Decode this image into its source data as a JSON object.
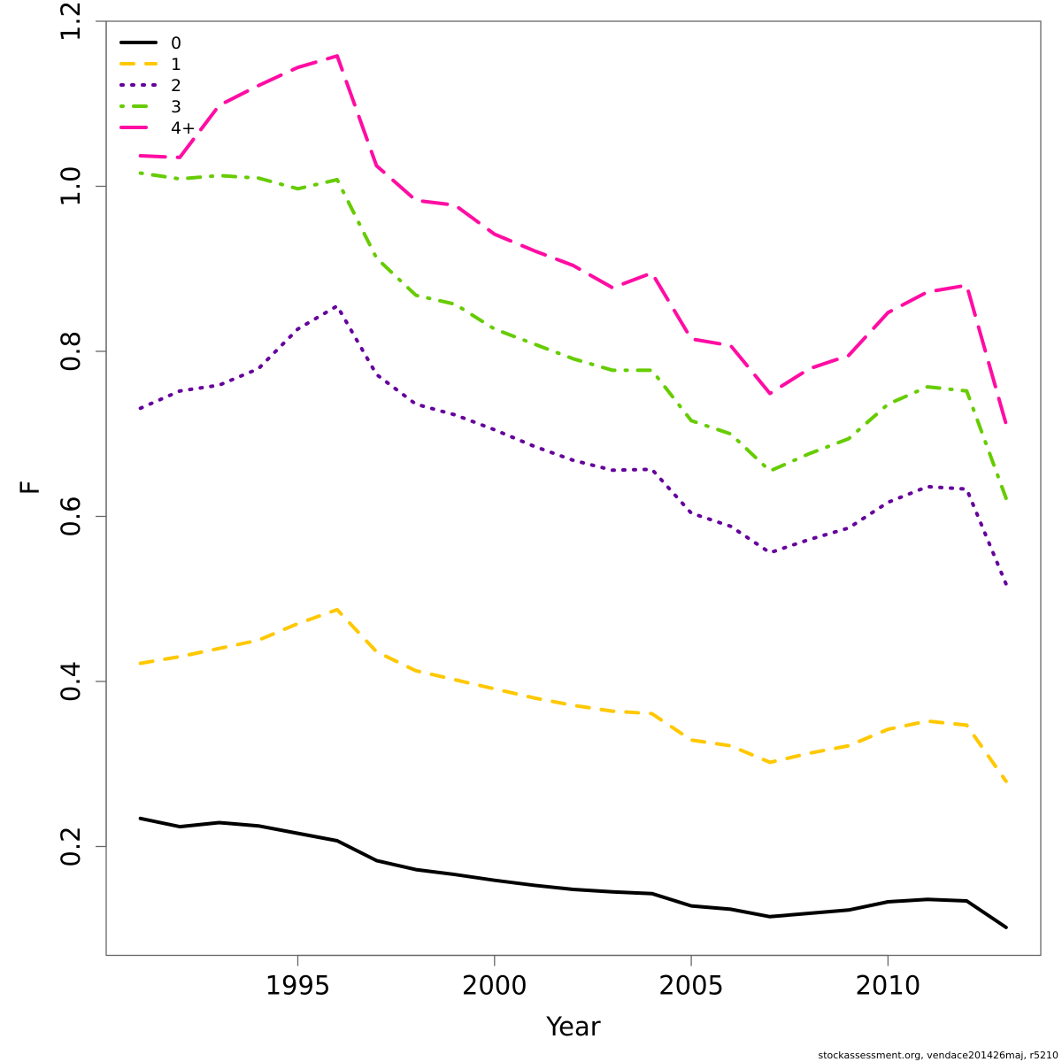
{
  "chart_data": {
    "type": "line",
    "title": "",
    "xlabel": "Year",
    "ylabel": "F",
    "xlim": [
      1990.05,
      2013.95
    ],
    "ylim": [
      0.067,
      1.2
    ],
    "xticks": [
      1995,
      2000,
      2005,
      2010
    ],
    "xtick_labels": [
      "1995",
      "2000",
      "2005",
      "2010"
    ],
    "yticks": [
      0.2,
      0.4,
      0.6,
      0.8,
      1.0,
      1.2
    ],
    "ytick_labels": [
      "0.2",
      "0.4",
      "0.6",
      "0.8",
      "1.0",
      "1.2"
    ],
    "grid": false,
    "legend_position": "top-left",
    "x": [
      1991,
      1992,
      1993,
      1994,
      1995,
      1996,
      1997,
      1998,
      1999,
      2000,
      2001,
      2002,
      2003,
      2004,
      2005,
      2006,
      2007,
      2008,
      2009,
      2010,
      2011,
      2012,
      2013
    ],
    "series": [
      {
        "name": "0",
        "color": "#000000",
        "dash": "solid",
        "values": [
          0.234,
          0.224,
          0.229,
          0.225,
          0.216,
          0.207,
          0.183,
          0.172,
          0.166,
          0.159,
          0.153,
          0.148,
          0.145,
          0.143,
          0.128,
          0.124,
          0.115,
          0.119,
          0.123,
          0.133,
          0.136,
          0.134,
          0.102
        ]
      },
      {
        "name": "1",
        "color": "#FFC800",
        "dash": "dashed",
        "values": [
          0.422,
          0.43,
          0.44,
          0.45,
          0.47,
          0.487,
          0.436,
          0.413,
          0.402,
          0.391,
          0.38,
          0.371,
          0.364,
          0.361,
          0.329,
          0.322,
          0.302,
          0.313,
          0.322,
          0.342,
          0.352,
          0.347,
          0.279
        ]
      },
      {
        "name": "2",
        "color": "#65009C",
        "dash": "dotted",
        "values": [
          0.731,
          0.752,
          0.759,
          0.779,
          0.827,
          0.855,
          0.772,
          0.736,
          0.723,
          0.705,
          0.685,
          0.668,
          0.656,
          0.657,
          0.604,
          0.588,
          0.556,
          0.572,
          0.586,
          0.617,
          0.636,
          0.633,
          0.518
        ]
      },
      {
        "name": "3",
        "color": "#66CC00",
        "dash": "dotdash",
        "values": [
          1.016,
          1.009,
          1.013,
          1.01,
          0.997,
          1.008,
          0.913,
          0.868,
          0.857,
          0.827,
          0.809,
          0.791,
          0.777,
          0.777,
          0.716,
          0.7,
          0.655,
          0.676,
          0.694,
          0.736,
          0.757,
          0.752,
          0.622
        ]
      },
      {
        "name": "4+",
        "color": "#FF0DA3",
        "dash": "longdash",
        "values": [
          1.037,
          1.035,
          1.098,
          1.122,
          1.144,
          1.158,
          1.025,
          0.983,
          0.977,
          0.942,
          0.922,
          0.904,
          0.877,
          0.895,
          0.815,
          0.807,
          0.749,
          0.779,
          0.795,
          0.847,
          0.872,
          0.88,
          0.712
        ]
      }
    ]
  },
  "footer": {
    "credit": "stockassessment.org, vendace201426maj, r5210"
  }
}
